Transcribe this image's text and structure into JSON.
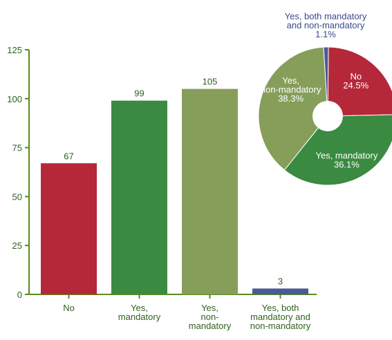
{
  "chart_data": [
    {
      "type": "bar",
      "categories": [
        "No",
        "Yes, mandatory",
        "Yes, non-mandatory",
        "Yes, both mandatory and non-mandatory"
      ],
      "category_lines": [
        [
          "No"
        ],
        [
          "Yes,",
          "mandatory"
        ],
        [
          "Yes,",
          "non-",
          "mandatory"
        ],
        [
          "Yes, both",
          "mandatory and",
          "non-mandatory"
        ]
      ],
      "values": [
        67,
        99,
        105,
        3
      ],
      "colors": [
        "#b5283a",
        "#3a8a42",
        "#869e5a",
        "#4a5a96"
      ],
      "ylim": [
        0,
        125
      ],
      "yticks": [
        0,
        25,
        50,
        75,
        100,
        125
      ],
      "title": "",
      "xlabel": "",
      "ylabel": "",
      "grid": false,
      "axis_color": "#5a8a1a",
      "label_color": "#2f5f1f"
    },
    {
      "type": "pie",
      "slices": [
        {
          "label": "No",
          "value": 24.5,
          "pct": "24.5%",
          "color": "#b5283a",
          "text_color": "#ffffff",
          "lines": [
            "No",
            "24.5%"
          ]
        },
        {
          "label": "Yes, mandatory",
          "value": 36.1,
          "pct": "36.1%",
          "color": "#3a8a42",
          "text_color": "#ffffff",
          "lines": [
            "Yes, mandatory",
            "36.1%"
          ]
        },
        {
          "label": "Yes, non-mandatory",
          "value": 38.3,
          "pct": "38.3%",
          "color": "#869e5a",
          "text_color": "#ffffff",
          "lines": [
            "Yes,",
            "non-mandatory",
            "38.3%"
          ]
        },
        {
          "label": "Yes, both mandatory and non-mandatory",
          "value": 1.1,
          "pct": "1.1%",
          "color": "#4a5a96",
          "text_color": "#3a4a8a",
          "lines": [
            "Yes, both mandatory",
            "and non-mandatory",
            "1.1%"
          ]
        }
      ],
      "donut_hole": true
    }
  ]
}
